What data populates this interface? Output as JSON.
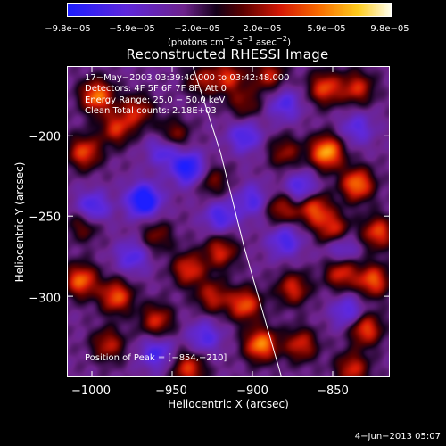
{
  "colorbar": {
    "labels": [
      "−9.8e−05",
      "−5.9e−05",
      "−2.0e−05",
      "2.0e−05",
      "5.9e−05",
      "9.8e−05"
    ],
    "units_html": "(photons cm<sup>−2</sup> s<sup>−1</sup> asec<sup>−2</sup>)",
    "units": "(photons cm-2 s-1 asec-2)"
  },
  "title": "Reconstructed RHESSI Image",
  "annotations": {
    "time_range": "17−May−2003 03:39:40.000 to 03:42:48.000",
    "detectors": "Detectors: 4F 5F 6F 7F 8F, Att 0",
    "energy_range": "Energy Range: 25.0 − 50.0 keV",
    "clean_counts": "Clean    Total counts: 2.18E+03",
    "peak": "Position of Peak = [−854,−210]"
  },
  "axes": {
    "xlabel": "Heliocentric X (arcsec)",
    "ylabel": "Heliocentric Y (arcsec)",
    "xticks": [
      "−1000",
      "−950",
      "−900",
      "−850"
    ],
    "yticks": [
      "−200",
      "−250",
      "−300"
    ]
  },
  "footer": "4−Jun−2013 05:07",
  "chart_data": {
    "type": "heatmap",
    "title": "Reconstructed RHESSI Image",
    "xlabel": "Heliocentric X (arcsec)",
    "ylabel": "Heliocentric Y (arcsec)",
    "xlim": [
      -1015,
      -815
    ],
    "ylim": [
      -350,
      -157
    ],
    "xticks": [
      -1000,
      -950,
      -900,
      -850
    ],
    "yticks": [
      -200,
      -250,
      -300
    ],
    "colorbar_range": [
      -9.8e-05,
      9.8e-05
    ],
    "colorbar_ticks": [
      -9.8e-05,
      -5.9e-05,
      -2e-05,
      2e-05,
      5.9e-05,
      9.8e-05
    ],
    "peak_position": [
      -854,
      -210
    ],
    "total_counts": 2180,
    "energy_range_keV": [
      25.0,
      50.0
    ],
    "colormap": "blue-purple-red-orange-yellow-white",
    "hot_spots": [
      {
        "x": -997,
        "y": -175,
        "v": 0.85
      },
      {
        "x": -972,
        "y": -184,
        "v": 0.55
      },
      {
        "x": -1005,
        "y": -210,
        "v": 0.7
      },
      {
        "x": -985,
        "y": -195,
        "v": 0.6
      },
      {
        "x": -950,
        "y": -200,
        "v": 0.55
      },
      {
        "x": -932,
        "y": -165,
        "v": 0.45
      },
      {
        "x": -915,
        "y": -163,
        "v": 0.6
      },
      {
        "x": -890,
        "y": -162,
        "v": 0.55
      },
      {
        "x": -905,
        "y": -180,
        "v": 0.4
      },
      {
        "x": -855,
        "y": -170,
        "v": 0.7
      },
      {
        "x": -835,
        "y": -170,
        "v": 0.6
      },
      {
        "x": -854,
        "y": -210,
        "v": 1.0
      },
      {
        "x": -880,
        "y": -210,
        "v": 0.45
      },
      {
        "x": -882,
        "y": -245,
        "v": 0.55
      },
      {
        "x": -862,
        "y": -245,
        "v": 0.75
      },
      {
        "x": -835,
        "y": -230,
        "v": 0.85
      },
      {
        "x": -822,
        "y": -260,
        "v": 0.7
      },
      {
        "x": -825,
        "y": -290,
        "v": 0.75
      },
      {
        "x": -845,
        "y": -285,
        "v": 0.65
      },
      {
        "x": -875,
        "y": -295,
        "v": 0.6
      },
      {
        "x": -905,
        "y": -305,
        "v": 0.75
      },
      {
        "x": -925,
        "y": -300,
        "v": 0.55
      },
      {
        "x": -940,
        "y": -283,
        "v": 0.65
      },
      {
        "x": -920,
        "y": -272,
        "v": 0.6
      },
      {
        "x": -960,
        "y": -315,
        "v": 0.6
      },
      {
        "x": -985,
        "y": -300,
        "v": 0.75
      },
      {
        "x": -1007,
        "y": -290,
        "v": 0.8
      },
      {
        "x": -1005,
        "y": -255,
        "v": 0.45
      },
      {
        "x": -990,
        "y": -330,
        "v": 0.55
      },
      {
        "x": -895,
        "y": -330,
        "v": 0.9
      },
      {
        "x": -870,
        "y": -330,
        "v": 0.6
      },
      {
        "x": -830,
        "y": -320,
        "v": 0.75
      },
      {
        "x": -838,
        "y": -345,
        "v": 0.6
      },
      {
        "x": -940,
        "y": -345,
        "v": 0.65
      },
      {
        "x": -925,
        "y": -228,
        "v": 0.4
      },
      {
        "x": -960,
        "y": -262,
        "v": 0.4
      },
      {
        "x": -850,
        "y": -258,
        "v": 0.65
      }
    ],
    "cold_spots": [
      {
        "x": -968,
        "y": -240,
        "v": -0.9
      },
      {
        "x": -940,
        "y": -220,
        "v": -0.75
      },
      {
        "x": -955,
        "y": -208,
        "v": -0.55
      },
      {
        "x": -920,
        "y": -250,
        "v": -0.5
      },
      {
        "x": -870,
        "y": -233,
        "v": -0.55
      },
      {
        "x": -845,
        "y": -270,
        "v": -0.45
      },
      {
        "x": -880,
        "y": -265,
        "v": -0.5
      },
      {
        "x": -900,
        "y": -240,
        "v": -0.45
      },
      {
        "x": -905,
        "y": -200,
        "v": -0.5
      },
      {
        "x": -960,
        "y": -335,
        "v": -0.5
      },
      {
        "x": -930,
        "y": -325,
        "v": -0.45
      },
      {
        "x": -840,
        "y": -310,
        "v": -0.5
      },
      {
        "x": -835,
        "y": -195,
        "v": -0.4
      },
      {
        "x": -1000,
        "y": -245,
        "v": -0.6
      },
      {
        "x": -975,
        "y": -275,
        "v": -0.45
      },
      {
        "x": -880,
        "y": -180,
        "v": -0.45
      }
    ],
    "limb_line": [
      [
        -937,
        -157
      ],
      [
        -920,
        -210
      ],
      [
        -905,
        -270
      ],
      [
        -882,
        -350
      ]
    ]
  }
}
